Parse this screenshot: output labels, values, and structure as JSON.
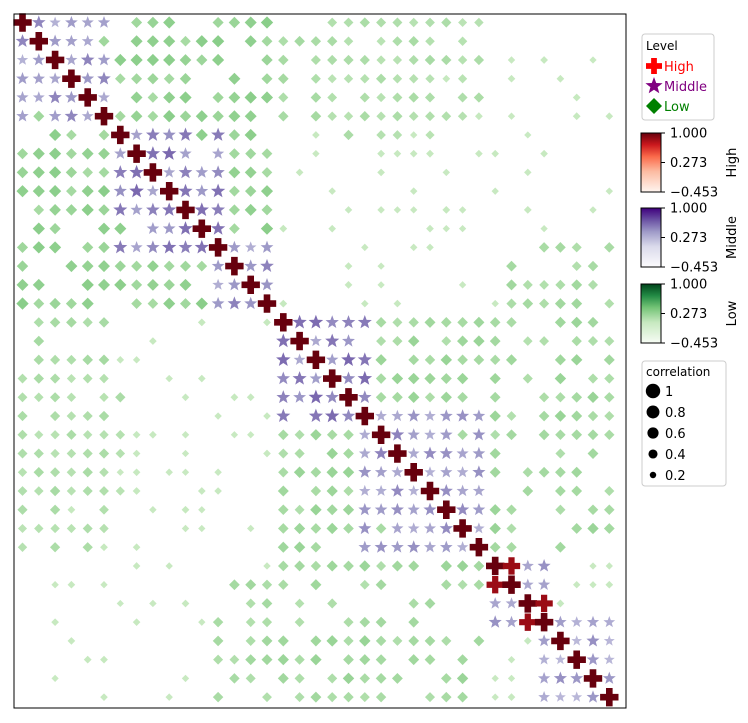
{
  "chart_data": {
    "type": "heatmap",
    "marker_style": "correlation matrix drawn with shape markers; marker shape = level, marker size = |correlation|, marker colour = correlation value",
    "matrix_size": 37,
    "axis_ticks_shown": false,
    "grid": false,
    "levels": [
      {
        "name": "High",
        "marker": "plus",
        "legend_color": "#ff0000",
        "colormap": "Reds",
        "label_color": "#ff0000"
      },
      {
        "name": "Middle",
        "marker": "star",
        "legend_color": "#800080",
        "colormap": "Purples",
        "label_color": "#800080"
      },
      {
        "name": "Low",
        "marker": "diamond",
        "legend_color": "#008000",
        "colormap": "Greens",
        "label_color": "#008000"
      }
    ],
    "level_legend": {
      "title": "Level",
      "entries": [
        "High",
        "Middle",
        "Low"
      ],
      "placement": "upper right, outside plot"
    },
    "colorbars": [
      {
        "label": "High",
        "ticks": [
          "1.000",
          "0.273",
          "−0.453"
        ],
        "vmin": -0.453,
        "vmax": 1.0
      },
      {
        "label": "Middle",
        "ticks": [
          "1.000",
          "0.273",
          "−0.453"
        ],
        "vmin": -0.453,
        "vmax": 1.0
      },
      {
        "label": "Low",
        "ticks": [
          "1.000",
          "0.273",
          "−0.453"
        ],
        "vmin": -0.453,
        "vmax": 1.0
      }
    ],
    "size_legend": {
      "title": "correlation",
      "entries": [
        {
          "label": "1",
          "value": 1.0
        },
        {
          "label": "0.8",
          "value": 0.8
        },
        {
          "label": "0.6",
          "value": 0.6
        },
        {
          "label": "0.4",
          "value": 0.4
        },
        {
          "label": "0.2",
          "value": 0.2
        }
      ]
    },
    "diagonal_value": 1.0,
    "high_pairs": [
      [
        29,
        30,
        0.85
      ],
      [
        31,
        32,
        0.85
      ]
    ],
    "clusters": [
      {
        "start": 0,
        "end": 5,
        "within_level": "Middle",
        "within_value": 0.45
      },
      {
        "start": 6,
        "end": 12,
        "within_level": "Middle",
        "within_value": 0.55
      },
      {
        "start": 12,
        "end": 15,
        "within_level": "Middle",
        "within_value": 0.45
      },
      {
        "start": 16,
        "end": 21,
        "within_level": "Middle",
        "within_value": 0.55
      },
      {
        "start": 21,
        "end": 28,
        "within_level": "Middle",
        "within_value": 0.45
      },
      {
        "start": 29,
        "end": 32,
        "within_level": "Middle",
        "within_value": 0.4
      },
      {
        "start": 32,
        "end": 36,
        "within_level": "Middle",
        "within_value": 0.4
      }
    ],
    "green_blocks": [
      {
        "rows": [
          0,
          12
        ],
        "cols": [
          0,
          15
        ],
        "value": 0.35
      },
      {
        "rows": [
          16,
          28
        ],
        "cols": [
          16,
          36
        ],
        "value": 0.28
      },
      {
        "rows": [
          0,
          5
        ],
        "cols": [
          16,
          25
        ],
        "value": 0.22
      },
      {
        "rows": [
          12,
          21
        ],
        "cols": [
          30,
          36
        ],
        "value": 0.25
      },
      {
        "rows": [
          19,
          28
        ],
        "cols": [
          0,
          6
        ],
        "value": 0.2
      },
      {
        "rows": [
          33,
          36
        ],
        "cols": [
          16,
          22
        ],
        "value": 0.28
      }
    ]
  }
}
